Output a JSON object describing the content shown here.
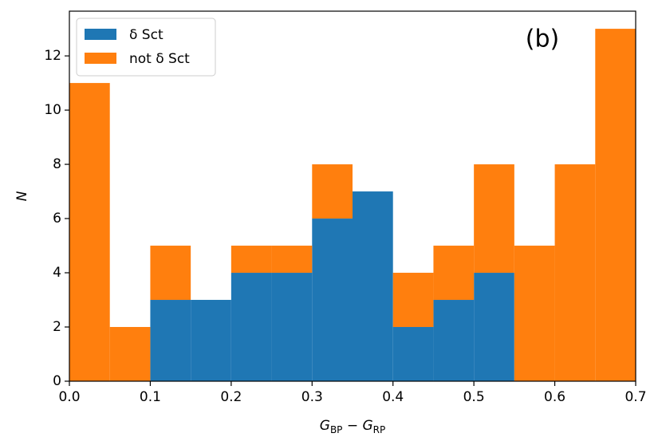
{
  "chart_data": {
    "type": "histogram",
    "xlabel": [
      "G",
      "BP",
      " − G",
      "RP"
    ],
    "ylabel": "N",
    "annotation": "(b)",
    "bins": [
      0,
      0.05,
      0.1,
      0.15,
      0.2,
      0.25,
      0.3,
      0.35,
      0.4,
      0.45,
      0.5,
      0.55,
      0.6,
      0.65,
      0.7
    ],
    "series": [
      {
        "name": "δ Sct",
        "color": "#1f77b4",
        "values": [
          0,
          0,
          3,
          3,
          4,
          4,
          6,
          7,
          2,
          3,
          4,
          0,
          0,
          0
        ]
      },
      {
        "name": "not δ Sct",
        "color": "#ff7f0e",
        "values": [
          11,
          2,
          2,
          0,
          1,
          1,
          2,
          0,
          2,
          2,
          4,
          5,
          8,
          13
        ]
      }
    ],
    "stacked": true,
    "xlim": [
      0,
      0.7
    ],
    "ylim": [
      0,
      13.65
    ],
    "xticks": [
      {
        "value": 0,
        "label": "0.0"
      },
      0.1,
      0.2,
      0.3,
      0.4,
      0.5,
      0.6,
      0.7
    ],
    "yticks": [
      0,
      2,
      4,
      6,
      8,
      10,
      12
    ],
    "legend": "upper left"
  }
}
